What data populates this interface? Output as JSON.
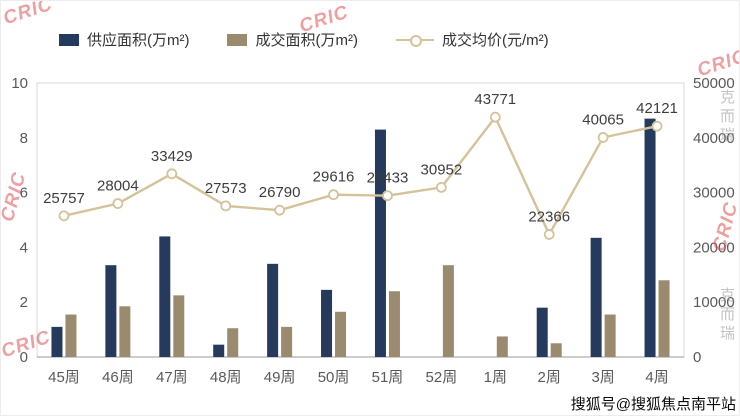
{
  "legend": [
    {
      "label": "供应面积(万m²)"
    },
    {
      "label": "成交面积(万m²)"
    },
    {
      "label": "成交均价(元/m²)"
    }
  ],
  "chart_data": {
    "type": "bar+line combo",
    "categories": [
      "45周",
      "46周",
      "47周",
      "48周",
      "49周",
      "50周",
      "51周",
      "52周",
      "1周",
      "2周",
      "3周",
      "4周"
    ],
    "series": [
      {
        "name": "供应面积(万m²)",
        "type": "bar",
        "axis": "left",
        "color": "#253a5d",
        "values": [
          1.1,
          3.35,
          4.4,
          0.45,
          3.4,
          2.45,
          8.3,
          0,
          0,
          1.8,
          4.35,
          8.7
        ]
      },
      {
        "name": "成交面积(万m²)",
        "type": "bar",
        "axis": "left",
        "color": "#9a8a6e",
        "values": [
          1.55,
          1.85,
          2.25,
          1.05,
          1.1,
          1.65,
          2.4,
          3.35,
          0.75,
          0.5,
          1.55,
          2.8
        ]
      },
      {
        "name": "成交均价(元/m²)",
        "type": "line",
        "axis": "right",
        "color": "#d4c39a",
        "values": [
          25757,
          28004,
          33429,
          27573,
          26790,
          29616,
          29433,
          30952,
          43771,
          22366,
          40065,
          42121
        ]
      }
    ],
    "left_axis": {
      "min": 0,
      "max": 10,
      "ticks": [
        0,
        2,
        4,
        6,
        8,
        10
      ]
    },
    "right_axis": {
      "min": 0,
      "max": 50000,
      "ticks": [
        0,
        10000,
        20000,
        30000,
        40000,
        50000
      ]
    },
    "grid": false,
    "legend_position": "top",
    "data_labels_series": "成交均价(元/m²)"
  },
  "watermarks": {
    "cric": "CRIC",
    "cric_cn": "克而瑞",
    "caption": "搜狐号@搜狐焦点南平站"
  }
}
